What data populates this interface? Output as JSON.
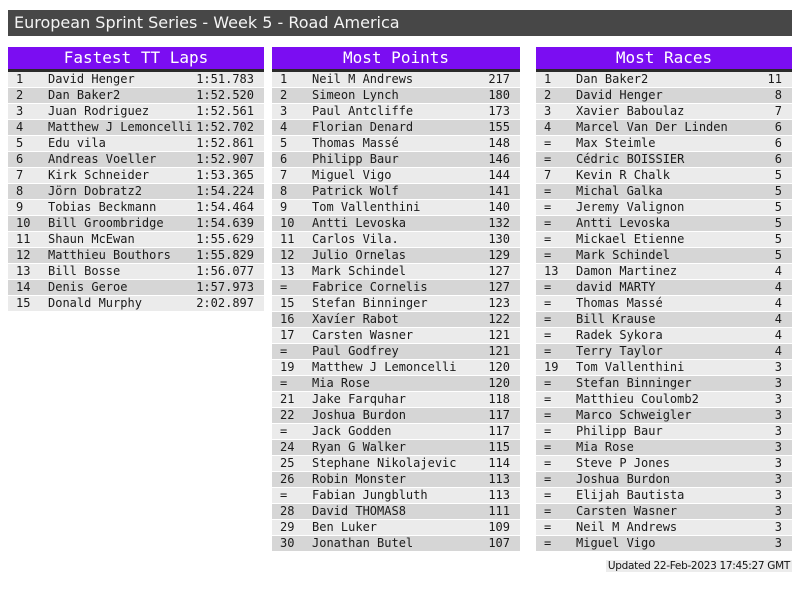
{
  "header": {
    "title": "European Sprint Series - Week 5 - Road America"
  },
  "colors": {
    "accent_purple": "#7b0df2",
    "titlebar_gray": "#474747",
    "header_underline": "#2b2b2b",
    "row_odd": "#ebebeb",
    "row_even": "#d6d6d6"
  },
  "tables": [
    {
      "id": "fastest-tt-laps",
      "title": "Fastest TT Laps",
      "rows": [
        [
          "1",
          "David Henger",
          "1:51.783"
        ],
        [
          "2",
          "Dan Baker2",
          "1:52.520"
        ],
        [
          "3",
          "Juan Rodriguez",
          "1:52.561"
        ],
        [
          "4",
          "Matthew J Lemoncelli",
          "1:52.702"
        ],
        [
          "5",
          "Edu vila",
          "1:52.861"
        ],
        [
          "6",
          "Andreas Voeller",
          "1:52.907"
        ],
        [
          "7",
          "Kirk Schneider",
          "1:53.365"
        ],
        [
          "8",
          "Jörn Dobratz2",
          "1:54.224"
        ],
        [
          "9",
          "Tobias Beckmann",
          "1:54.464"
        ],
        [
          "10",
          "Bill Groombridge",
          "1:54.639"
        ],
        [
          "11",
          "Shaun McEwan",
          "1:55.629"
        ],
        [
          "12",
          "Matthieu Bouthors",
          "1:55.829"
        ],
        [
          "13",
          "Bill Bosse",
          "1:56.077"
        ],
        [
          "14",
          "Denis Geroe",
          "1:57.973"
        ],
        [
          "15",
          "Donald Murphy",
          "2:02.897"
        ]
      ]
    },
    {
      "id": "most-points",
      "title": "Most Points",
      "rows": [
        [
          "1",
          "Neil M Andrews",
          "217"
        ],
        [
          "2",
          "Simeon Lynch",
          "180"
        ],
        [
          "3",
          "Paul Antcliffe",
          "173"
        ],
        [
          "4",
          "Florian Denard",
          "155"
        ],
        [
          "5",
          "Thomas Massé",
          "148"
        ],
        [
          "6",
          "Philipp Baur",
          "146"
        ],
        [
          "7",
          "Miguel Vigo",
          "144"
        ],
        [
          "8",
          "Patrick Wolf",
          "141"
        ],
        [
          "9",
          "Tom Vallenthini",
          "140"
        ],
        [
          "10",
          "Antti Levoska",
          "132"
        ],
        [
          "11",
          "Carlos Vila.",
          "130"
        ],
        [
          "12",
          "Julio Ornelas",
          "129"
        ],
        [
          "13",
          "Mark Schindel",
          "127"
        ],
        [
          "=",
          "Fabrice Cornelis",
          "127"
        ],
        [
          "15",
          "Stefan Binninger",
          "123"
        ],
        [
          "16",
          "Xavíer Rabot",
          "122"
        ],
        [
          "17",
          "Carsten Wasner",
          "121"
        ],
        [
          "=",
          "Paul Godfrey",
          "121"
        ],
        [
          "19",
          "Matthew J Lemoncelli",
          "120"
        ],
        [
          "=",
          "Mia Rose",
          "120"
        ],
        [
          "21",
          "Jake Farquhar",
          "118"
        ],
        [
          "22",
          "Joshua Burdon",
          "117"
        ],
        [
          "=",
          "Jack Godden",
          "117"
        ],
        [
          "24",
          "Ryan G Walker",
          "115"
        ],
        [
          "25",
          "Stephane Nikolajevic",
          "114"
        ],
        [
          "26",
          "Robin Monster",
          "113"
        ],
        [
          "=",
          "Fabian Jungbluth",
          "113"
        ],
        [
          "28",
          "David THOMAS8",
          "111"
        ],
        [
          "29",
          "Ben Luker",
          "109"
        ],
        [
          "30",
          "Jonathan Butel",
          "107"
        ]
      ]
    },
    {
      "id": "most-races",
      "title": "Most Races",
      "rows": [
        [
          "1",
          "Dan Baker2",
          "11"
        ],
        [
          "2",
          "David Henger",
          "8"
        ],
        [
          "3",
          "Xavier Baboulaz",
          "7"
        ],
        [
          "4",
          "Marcel Van Der Linden",
          "6"
        ],
        [
          "=",
          "Max Steimle",
          "6"
        ],
        [
          "=",
          "Cédric BOISSIER",
          "6"
        ],
        [
          "7",
          "Kevin R Chalk",
          "5"
        ],
        [
          "=",
          "Michal Galka",
          "5"
        ],
        [
          "=",
          "Jeremy Valignon",
          "5"
        ],
        [
          "=",
          "Antti Levoska",
          "5"
        ],
        [
          "=",
          "Mickael Etienne",
          "5"
        ],
        [
          "=",
          "Mark Schindel",
          "5"
        ],
        [
          "13",
          "Damon Martinez",
          "4"
        ],
        [
          "=",
          "david MARTY",
          "4"
        ],
        [
          "=",
          "Thomas Massé",
          "4"
        ],
        [
          "=",
          "Bill Krause",
          "4"
        ],
        [
          "=",
          "Radek Sykora",
          "4"
        ],
        [
          "=",
          "Terry Taylor",
          "4"
        ],
        [
          "19",
          "Tom Vallenthini",
          "3"
        ],
        [
          "=",
          "Stefan Binninger",
          "3"
        ],
        [
          "=",
          "Matthieu Coulomb2",
          "3"
        ],
        [
          "=",
          "Marco Schweigler",
          "3"
        ],
        [
          "=",
          "Philipp Baur",
          "3"
        ],
        [
          "=",
          "Mia Rose",
          "3"
        ],
        [
          "=",
          "Steve P Jones",
          "3"
        ],
        [
          "=",
          "Joshua Burdon",
          "3"
        ],
        [
          "=",
          "Elijah Bautista",
          "3"
        ],
        [
          "=",
          "Carsten Wasner",
          "3"
        ],
        [
          "=",
          "Neil M Andrews",
          "3"
        ],
        [
          "=",
          "Miguel Vigo",
          "3"
        ]
      ]
    }
  ],
  "footer": {
    "updated": "Updated 22-Feb-2023 17:45:27 GMT"
  }
}
